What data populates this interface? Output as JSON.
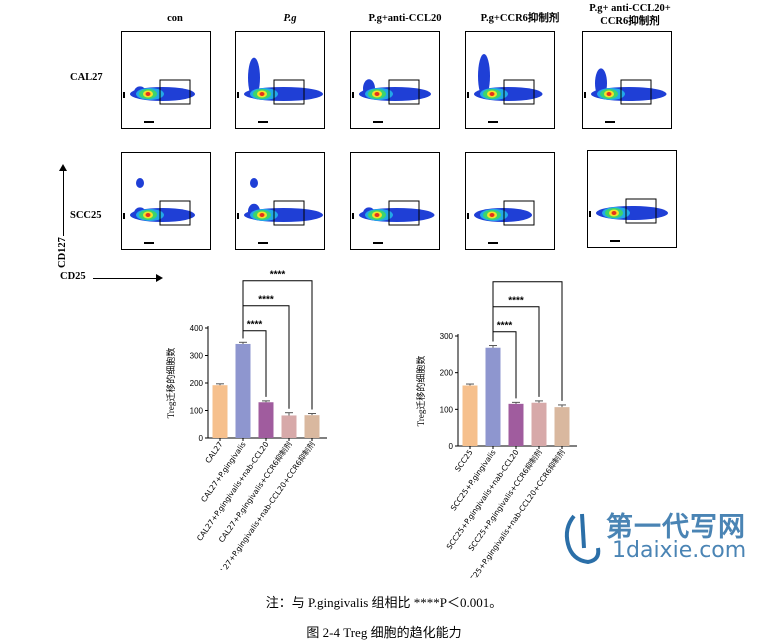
{
  "flow_panel": {
    "columns": [
      "con",
      "P.g",
      "P.g+anti-CCL20",
      "P.g+CCR6抑制剂",
      "P.g+ anti-CCL20+\nCCR6抑制剂"
    ],
    "rows": [
      "CAL27",
      "SCC25"
    ],
    "y_axis_label": "CD127",
    "x_axis_label": "CD25"
  },
  "chart_data": [
    {
      "type": "bar",
      "ylabel": "Treg迁移的细胞数",
      "ylim": [
        0,
        400
      ],
      "yticks": [
        "0",
        "100",
        "200",
        "300",
        "400"
      ],
      "categories": [
        "CAL27",
        "CAL27+P.gingivalis",
        "CAL27+P.gingivalis+nab-CCL20",
        "CAL27+P.gingivalis+CCR6抑制剂",
        "CAL27+P.gingivalis+nab-CCL20+CCR6抑制剂"
      ],
      "values": [
        192,
        342,
        130,
        82,
        83
      ],
      "errors": [
        5,
        6,
        5,
        10,
        6
      ],
      "colors": [
        "#f6c08d",
        "#8e96cf",
        "#a05c9e",
        "#d7a9a9",
        "#d9b89f"
      ],
      "significance": [
        "****",
        "****",
        "****"
      ]
    },
    {
      "type": "bar",
      "ylabel": "Treg迁移的细胞数",
      "ylim": [
        0,
        300
      ],
      "yticks": [
        "0",
        "100",
        "200",
        "300"
      ],
      "categories": [
        "SCC25",
        "SCC25+P.gingivalis",
        "SCC25+P.gingivalis+nab-CCL20",
        "SCC25+P.gingivalis+CCR6抑制剂",
        "SCC25+P.gingivalis+nab-CCL20+CCR6抑制剂"
      ],
      "values": [
        165,
        268,
        115,
        118,
        106
      ],
      "errors": [
        4,
        6,
        4,
        5,
        6
      ],
      "colors": [
        "#f6c08d",
        "#8e96cf",
        "#a05c9e",
        "#d7a9a9",
        "#d9b89f"
      ],
      "significance": [
        "****",
        "****",
        "****"
      ]
    }
  ],
  "footnote": "注：与 P.gingivalis 组相比 ****P＜0.001。",
  "caption": "图 2-4 Treg 细胞的趋化能力",
  "watermark": {
    "logo": "第一代写网",
    "url": "1daixie.com",
    "color": "#2b6fa8"
  }
}
